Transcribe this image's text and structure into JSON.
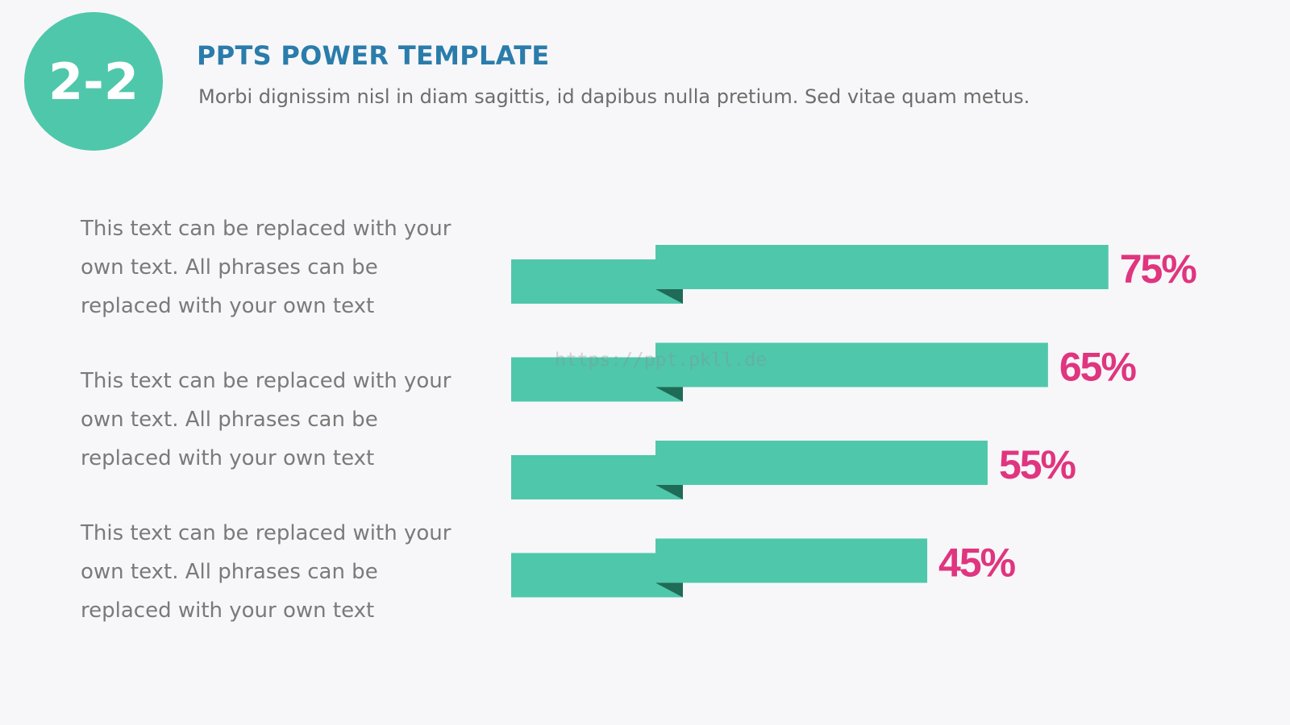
{
  "slide": {
    "badge_text": "2-2",
    "title": "PPTS POWER TEMPLATE",
    "subtitle": "Morbi dignissim nisl in diam sagittis, id dapibus nulla pretium. Sed vitae quam metus.",
    "watermark": "https://ppt.pkll.de"
  },
  "descriptions": [
    {
      "line1": "This text can be replaced with your",
      "line2": "own text. All phrases can be",
      "line3": "replaced with your own text"
    },
    {
      "line1": "This text can be replaced with your",
      "line2": "own text. All phrases can be",
      "line3": "replaced with your own text"
    },
    {
      "line1": "This text can be replaced with your",
      "line2": "own text. All phrases can be",
      "line3": "replaced with your own text"
    }
  ],
  "colors": {
    "badge": "#4fc7ab",
    "bar": "#4fc7ab",
    "fold": "#1f6b58",
    "value_label": "#e0357f"
  },
  "chart_data": {
    "type": "bar",
    "orientation": "horizontal",
    "categories": [
      "",
      "",
      "",
      ""
    ],
    "values": [
      75,
      65,
      55,
      45
    ],
    "value_labels": [
      "75%",
      "65%",
      "55%",
      "45%"
    ],
    "unit": "%",
    "xlim": [
      0,
      100
    ],
    "title": "",
    "xlabel": "",
    "ylabel": "",
    "grid": false,
    "legend": "none"
  }
}
